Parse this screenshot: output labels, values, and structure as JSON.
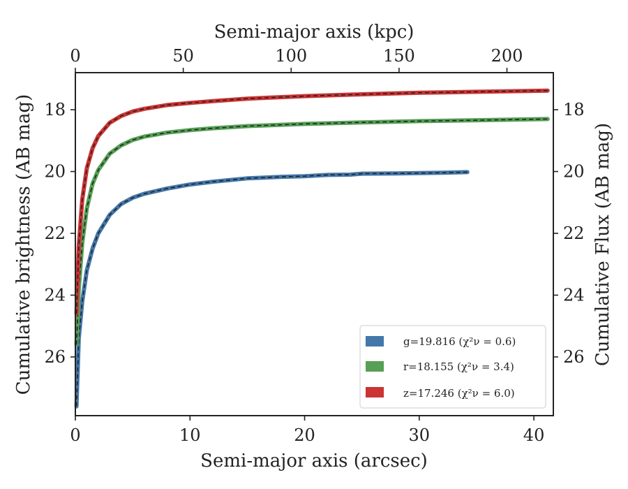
{
  "chart_data": {
    "type": "line",
    "xlabel": "Semi-major axis (arcsec)",
    "top_xlabel": "Semi-major axis (kpc)",
    "ylabel": "Cumulative brightness (AB mag)",
    "right_ylabel": "Cumulative Flux (AB mag)",
    "xlim": [
      0,
      41.7
    ],
    "ylim": [
      27.9,
      16.8
    ],
    "top_xlim": [
      0,
      221.5
    ],
    "y_inverted": true,
    "grid": false,
    "legend_position": "lower-right",
    "xticks": [
      0,
      10,
      20,
      30,
      40
    ],
    "top_xticks": [
      0,
      50,
      100,
      150,
      200
    ],
    "yticks": [
      18,
      20,
      22,
      24,
      26
    ],
    "series": [
      {
        "name": "g=19.816 (χ²ν = 0.6)",
        "color": "#4477aa",
        "x": [
          0.1,
          0.3,
          0.6,
          1,
          1.5,
          2,
          3,
          4,
          5,
          6,
          8,
          10,
          12,
          15,
          18,
          20,
          22,
          24,
          25,
          28,
          30,
          32,
          34.2
        ],
        "y": [
          27.6,
          25.4,
          24.2,
          23.2,
          22.5,
          22.0,
          21.4,
          21.05,
          20.85,
          20.72,
          20.55,
          20.42,
          20.33,
          20.22,
          20.17,
          20.15,
          20.11,
          20.1,
          20.07,
          20.06,
          20.05,
          20.04,
          20.02
        ]
      },
      {
        "name": "r=18.155 (χ²ν = 3.4)",
        "color": "#55a055",
        "x": [
          0.1,
          0.3,
          0.6,
          1,
          1.5,
          2,
          3,
          4,
          5,
          6,
          8,
          10,
          12,
          15,
          20,
          25,
          30,
          35,
          41.2
        ],
        "y": [
          25.6,
          23.8,
          22.3,
          21.2,
          20.4,
          19.95,
          19.42,
          19.15,
          18.98,
          18.87,
          18.74,
          18.66,
          18.6,
          18.53,
          18.46,
          18.41,
          18.37,
          18.34,
          18.3
        ]
      },
      {
        "name": "z=17.246 (χ²ν = 6.0)",
        "color": "#cc3333",
        "x": [
          0.1,
          0.3,
          0.6,
          1,
          1.5,
          2,
          3,
          4,
          5,
          6,
          8,
          10,
          12,
          15,
          20,
          25,
          30,
          35,
          41.2
        ],
        "y": [
          24.6,
          22.4,
          20.9,
          19.9,
          19.25,
          18.85,
          18.42,
          18.2,
          18.06,
          17.97,
          17.85,
          17.78,
          17.72,
          17.64,
          17.56,
          17.5,
          17.45,
          17.42,
          17.38
        ]
      }
    ]
  }
}
